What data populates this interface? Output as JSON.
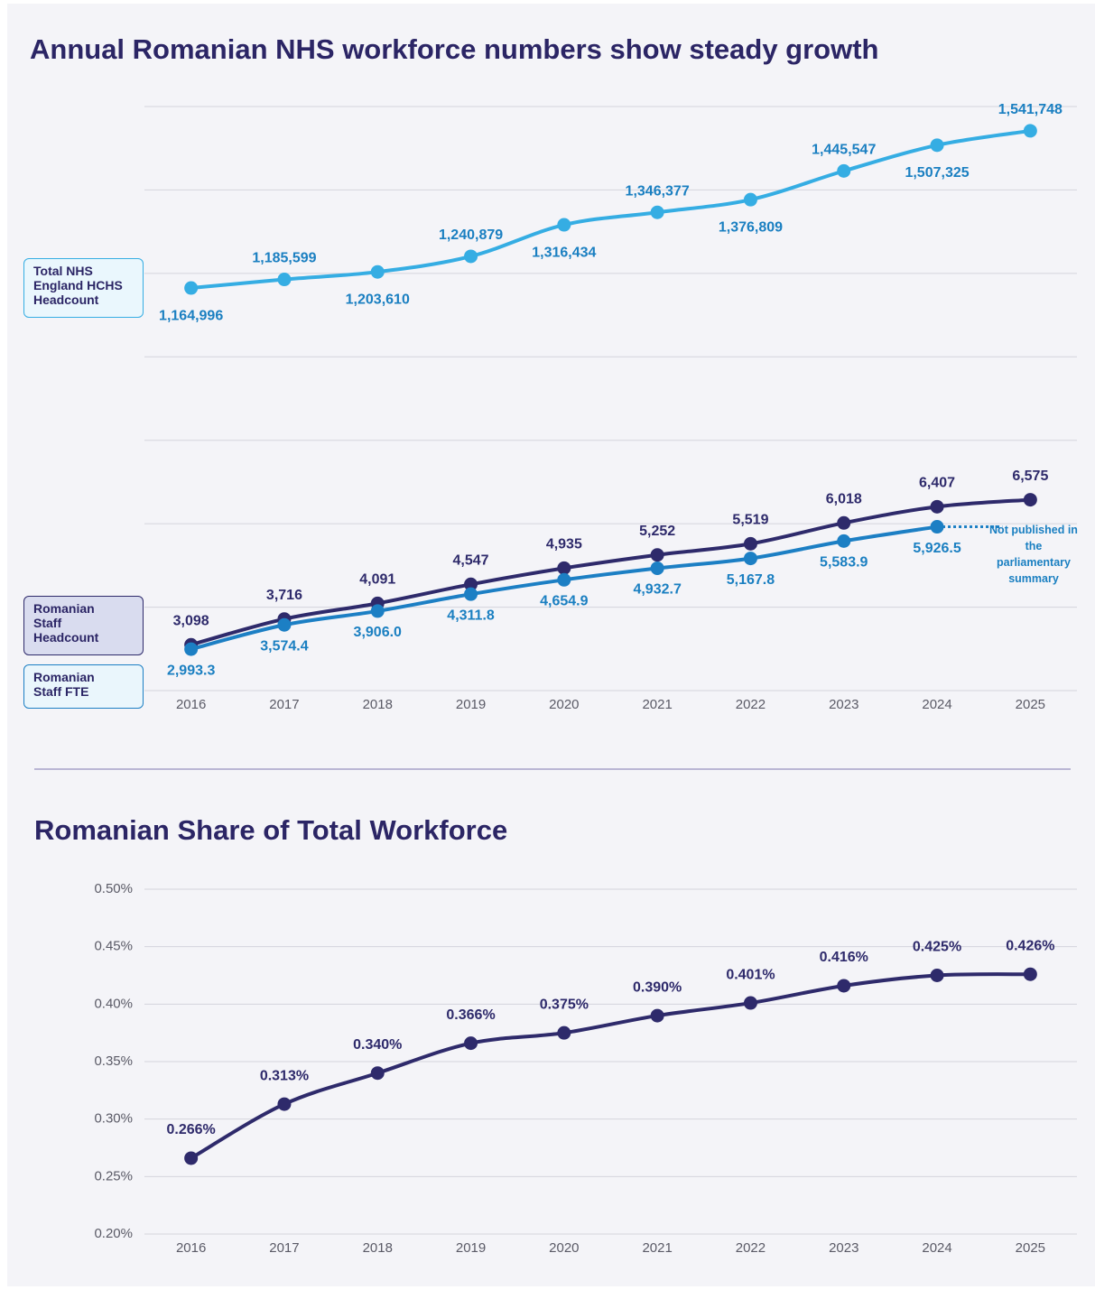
{
  "chart_data": [
    {
      "type": "line",
      "title": "Annual Romanian NHS workforce numbers show steady growth",
      "categories": [
        "2016",
        "2017",
        "2018",
        "2019",
        "2020",
        "2021",
        "2022",
        "2023",
        "2024",
        "2025"
      ],
      "ylim": [
        2000,
        16000
      ],
      "y2lim": [
        200000,
        1600000
      ],
      "grid": true,
      "series": [
        {
          "name": "Total NHS England HCHS Headcount",
          "color": "#35ade3",
          "axis": "y2",
          "values": [
            1164996,
            1185599,
            1203610,
            1240879,
            1316434,
            1346377,
            1376809,
            1445547,
            1507325,
            1541748
          ],
          "value_labels": [
            "1,164,996",
            "1,185,599",
            "1,203,610",
            "1,240,879",
            "1,316,434",
            "1,346,377",
            "1,376,809",
            "1,445,547",
            "1,507,325",
            "1,541,748"
          ]
        },
        {
          "name": "Romanian Staff Headcount",
          "color": "#2e2a6b",
          "values": [
            3098,
            3716,
            4091,
            4547,
            4935,
            5252,
            5519,
            6018,
            6407,
            6575
          ],
          "value_labels": [
            "3,098",
            "3,716",
            "4,091",
            "4,547",
            "4,935",
            "5,252",
            "5,519",
            "6,018",
            "6,407",
            "6,575"
          ]
        },
        {
          "name": "Romanian Staff FTE",
          "color": "#1c7fc4",
          "values": [
            2993.3,
            3574.4,
            3906.0,
            4311.8,
            4654.9,
            4932.7,
            5167.8,
            5583.9,
            5926.5,
            null
          ],
          "value_labels": [
            "2,993.3",
            "3,574.4",
            "3,906.0",
            "4,311.8",
            "4,654.9",
            "4,932.7",
            "5,167.8",
            "5,583.9",
            "5,926.5",
            null
          ]
        }
      ],
      "annotation": "Not published in the parliamentary summary"
    },
    {
      "type": "line",
      "title": "Romanian Share of Total Workforce",
      "categories": [
        "2016",
        "2017",
        "2018",
        "2019",
        "2020",
        "2021",
        "2022",
        "2023",
        "2024",
        "2025"
      ],
      "ylim": [
        0.2,
        0.5
      ],
      "yticks": [
        {
          "value": 0.2,
          "label": "0.20%"
        },
        {
          "value": 0.25,
          "label": "0.25%"
        },
        {
          "value": 0.3,
          "label": "0.30%"
        },
        {
          "value": 0.35,
          "label": "0.35%"
        },
        {
          "value": 0.4,
          "label": "0.40%"
        },
        {
          "value": 0.45,
          "label": "0.45%"
        },
        {
          "value": 0.5,
          "label": "0.50%"
        }
      ],
      "grid": true,
      "series": [
        {
          "color": "#2e2a6b",
          "values": [
            0.266,
            0.313,
            0.34,
            0.366,
            0.375,
            0.39,
            0.401,
            0.416,
            0.425,
            0.426
          ],
          "value_labels": [
            "0.266%",
            "0.313%",
            "0.340%",
            "0.366%",
            "0.375%",
            "0.390%",
            "0.401%",
            "0.416%",
            "0.425%",
            "0.426%"
          ]
        }
      ]
    }
  ]
}
